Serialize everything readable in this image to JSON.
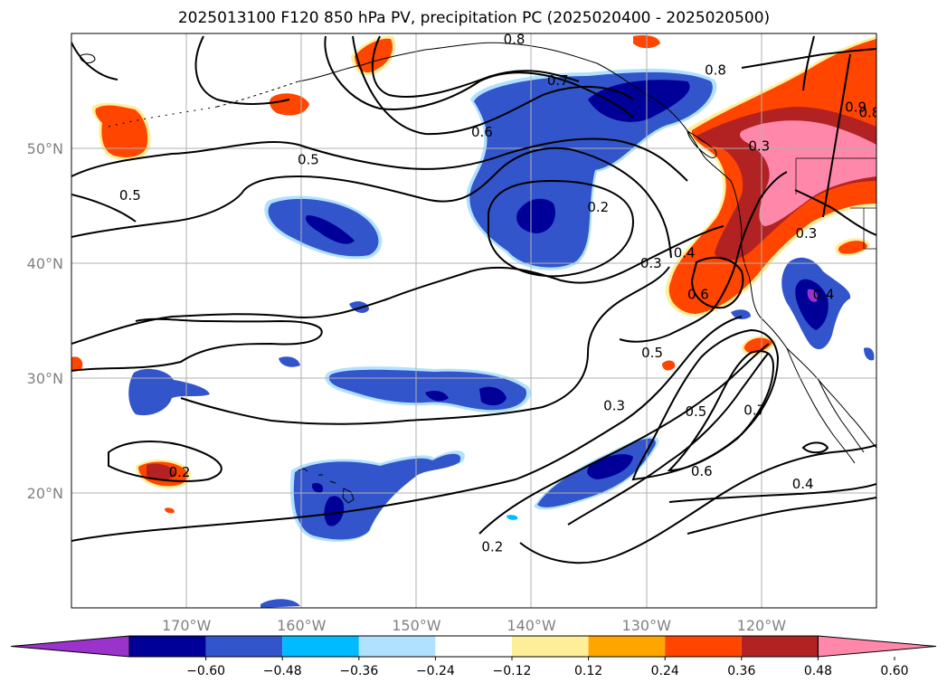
{
  "title": "2025013100 F120 850 hPa PV, precipitation PC (2025020400 - 2025020500)",
  "map": {
    "lon_range": [
      -180,
      -110
    ],
    "lat_range": [
      10,
      60
    ],
    "lon_ticks": [
      {
        "lon": -170,
        "label": "170°W"
      },
      {
        "lon": -160,
        "label": "160°W"
      },
      {
        "lon": -150,
        "label": "150°W"
      },
      {
        "lon": -140,
        "label": "140°W"
      },
      {
        "lon": -130,
        "label": "130°W"
      },
      {
        "lon": -120,
        "label": "120°W"
      }
    ],
    "lat_ticks": [
      {
        "lat": 50,
        "label": "50°N"
      },
      {
        "lat": 40,
        "label": "40°N"
      },
      {
        "lat": 30,
        "label": "30°N"
      },
      {
        "lat": 20,
        "label": "20°N"
      }
    ],
    "grid": true
  },
  "contour_labels": [
    {
      "text": "0.8",
      "lon": -141.5,
      "lat": 59.5
    },
    {
      "text": "0.8",
      "lon": -124,
      "lat": 56.8
    },
    {
      "text": "0.7",
      "lon": -137.7,
      "lat": 55.9
    },
    {
      "text": "0.6",
      "lon": -144.3,
      "lat": 51.4
    },
    {
      "text": "0.5",
      "lon": -159.4,
      "lat": 49.0
    },
    {
      "text": "0.5",
      "lon": -174.9,
      "lat": 45.9
    },
    {
      "text": "0.2",
      "lon": -134.2,
      "lat": 44.9
    },
    {
      "text": "0.9",
      "lon": -111.8,
      "lat": 53.6
    },
    {
      "text": "0.8",
      "lon": -110.6,
      "lat": 53.1
    },
    {
      "text": "0.3",
      "lon": -120.2,
      "lat": 50.2
    },
    {
      "text": "0.3",
      "lon": -116.1,
      "lat": 42.6
    },
    {
      "text": "0.4",
      "lon": -126.7,
      "lat": 40.9
    },
    {
      "text": "0.3",
      "lon": -129.6,
      "lat": 40.0
    },
    {
      "text": "0.4",
      "lon": -114.6,
      "lat": 37.3
    },
    {
      "text": "0.6",
      "lon": -125.5,
      "lat": 37.3
    },
    {
      "text": "0.5",
      "lon": -129.5,
      "lat": 32.2
    },
    {
      "text": "0.3",
      "lon": -132.8,
      "lat": 27.6
    },
    {
      "text": "0.5",
      "lon": -125.7,
      "lat": 27.1
    },
    {
      "text": "0.7",
      "lon": -120.6,
      "lat": 27.2
    },
    {
      "text": "0.2",
      "lon": -170.6,
      "lat": 21.8
    },
    {
      "text": "0.6",
      "lon": -125.2,
      "lat": 21.9
    },
    {
      "text": "0.4",
      "lon": -116.4,
      "lat": 20.8
    },
    {
      "text": "0.2",
      "lon": -143.4,
      "lat": 15.3
    }
  ],
  "colorbar": {
    "colors": [
      "#9933cc",
      "#000099",
      "#3355cc",
      "#00bbff",
      "#b0e2ff",
      "#ffffff",
      "#ffee99",
      "#ffa500",
      "#ff4500",
      "#b22222",
      "#ff88aa"
    ],
    "tick_labels": [
      "−0.60",
      "−0.48",
      "−0.36",
      "−0.24",
      "−0.12",
      "0.12",
      "0.24",
      "0.36",
      "0.48",
      "0.60"
    ],
    "extend": "both"
  }
}
